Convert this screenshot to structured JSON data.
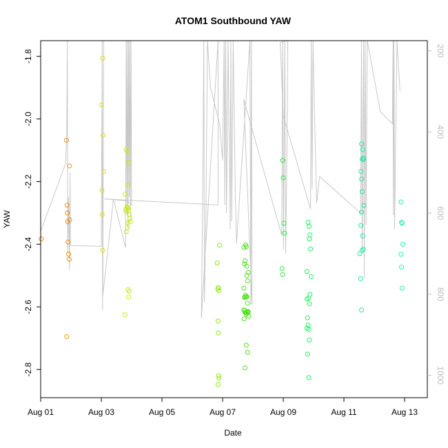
{
  "chart_data": {
    "type": "scatter",
    "title": "ATOM1 Southbound YAW",
    "xlabel": "Date",
    "ylabel": "YAW",
    "xlim_days": [
      0.0,
      12.75
    ],
    "ylim": [
      -2.89,
      -1.75
    ],
    "x_ticks": [
      {
        "day": 0,
        "label": "Aug 01"
      },
      {
        "day": 2,
        "label": "Aug 03"
      },
      {
        "day": 4,
        "label": "Aug 05"
      },
      {
        "day": 6,
        "label": "Aug 07"
      },
      {
        "day": 8,
        "label": "Aug 09"
      },
      {
        "day": 10,
        "label": "Aug 11"
      },
      {
        "day": 12,
        "label": "Aug 13"
      }
    ],
    "y_ticks": [
      -2.8,
      -2.6,
      -2.4,
      -2.2,
      -2.0,
      -1.8
    ],
    "y_tick_labels": [
      "-2.8",
      "-2.6",
      "-2.4",
      "-2.2",
      "-2.0",
      "-1.8"
    ],
    "right_axis": {
      "lim": [
        1055,
        175
      ],
      "ticks": [
        200,
        400,
        600,
        800,
        1000
      ],
      "tick_labels": [
        "200",
        "400",
        "600",
        "800",
        "1000"
      ],
      "color": "#bdbdbd"
    },
    "depth_line_color": "#c8c8c8",
    "depth_polyline": [
      [
        0.0,
        645
      ],
      [
        0.82,
        478
      ],
      [
        0.86,
        410
      ],
      [
        0.88,
        175
      ],
      [
        0.89,
        700
      ],
      [
        0.92,
        560
      ],
      [
        0.95,
        740
      ],
      [
        0.97,
        500
      ],
      [
        0.98,
        680
      ],
      [
        2.0,
        682
      ],
      [
        2.03,
        175
      ],
      [
        2.04,
        840
      ],
      [
        2.08,
        175
      ],
      [
        2.05,
        803
      ],
      [
        2.4,
        565
      ],
      [
        2.8,
        685
      ],
      [
        2.82,
        175
      ],
      [
        2.84,
        600
      ],
      [
        2.86,
        175
      ],
      [
        2.88,
        640
      ],
      [
        2.9,
        175
      ],
      [
        2.92,
        560
      ],
      [
        2.94,
        175
      ],
      [
        2.96,
        620
      ],
      [
        2.98,
        175
      ],
      [
        3.0,
        580
      ],
      [
        2.85,
        570
      ],
      [
        2.1,
        565
      ],
      [
        5.85,
        580
      ],
      [
        5.85,
        175
      ],
      [
        5.3,
        860
      ],
      [
        5.35,
        500
      ],
      [
        5.38,
        175
      ],
      [
        5.4,
        820
      ],
      [
        5.45,
        600
      ],
      [
        5.5,
        175
      ],
      [
        5.6,
        290
      ],
      [
        5.9,
        380
      ],
      [
        6.0,
        470
      ],
      [
        6.05,
        175
      ],
      [
        6.07,
        580
      ],
      [
        6.1,
        175
      ],
      [
        6.13,
        600
      ],
      [
        6.18,
        175
      ],
      [
        6.25,
        640
      ],
      [
        6.27,
        175
      ],
      [
        6.3,
        620
      ],
      [
        6.35,
        175
      ],
      [
        6.42,
        560
      ],
      [
        6.46,
        675
      ],
      [
        6.9,
        175
      ],
      [
        6.93,
        825
      ],
      [
        6.95,
        175
      ],
      [
        6.97,
        825
      ],
      [
        6.7,
        320
      ],
      [
        7.95,
        655
      ],
      [
        7.98,
        175
      ],
      [
        8.01,
        690
      ],
      [
        8.05,
        175
      ],
      [
        8.08,
        700
      ],
      [
        8.12,
        450
      ],
      [
        8.15,
        175
      ],
      [
        7.9,
        180
      ],
      [
        8.0,
        360
      ],
      [
        8.9,
        590
      ],
      [
        8.92,
        175
      ],
      [
        8.95,
        540
      ],
      [
        8.98,
        175
      ],
      [
        9.05,
        420
      ],
      [
        9.1,
        575
      ],
      [
        9.2,
        510
      ],
      [
        10.55,
        600
      ],
      [
        10.58,
        175
      ],
      [
        10.6,
        700
      ],
      [
        10.62,
        480
      ],
      [
        10.65,
        175
      ],
      [
        10.67,
        760
      ],
      [
        10.7,
        175
      ],
      [
        10.73,
        630
      ],
      [
        10.77,
        175
      ],
      [
        11.2,
        350
      ],
      [
        11.6,
        380
      ],
      [
        11.62,
        175
      ],
      [
        11.63,
        605
      ],
      [
        11.65,
        175
      ],
      [
        11.67,
        640
      ],
      [
        11.75,
        175
      ],
      [
        11.85,
        300
      ]
    ],
    "series": [
      {
        "color": "#ee8f12",
        "points": [
          [
            0.02,
            -2.383
          ],
          [
            0.85,
            -2.068
          ],
          [
            0.87,
            -2.275
          ],
          [
            0.88,
            -2.3
          ],
          [
            0.89,
            -2.328
          ],
          [
            0.9,
            -2.393
          ],
          [
            0.92,
            -2.432
          ],
          [
            0.94,
            -2.448
          ],
          [
            0.95,
            -2.15
          ],
          [
            0.96,
            -2.322
          ],
          [
            0.86,
            -2.695
          ]
        ]
      },
      {
        "color": "#dede20",
        "points": [
          [
            2.0,
            -1.955
          ],
          [
            2.04,
            -1.806
          ],
          [
            2.06,
            -2.052
          ],
          [
            2.08,
            -2.168
          ],
          [
            2.02,
            -2.228
          ],
          [
            2.03,
            -2.305
          ],
          [
            2.04,
            -2.42
          ]
        ]
      },
      {
        "color": "#c8e81e",
        "points": [
          [
            2.82,
            -2.098
          ],
          [
            2.86,
            -2.105
          ],
          [
            2.88,
            -2.21
          ],
          [
            2.9,
            -2.138
          ],
          [
            2.78,
            -2.24
          ],
          [
            2.8,
            -2.29
          ],
          [
            2.82,
            -2.295
          ],
          [
            2.84,
            -2.28
          ],
          [
            2.86,
            -2.283
          ],
          [
            2.88,
            -2.286
          ],
          [
            2.9,
            -2.293
          ],
          [
            2.92,
            -2.305
          ],
          [
            2.94,
            -2.318
          ],
          [
            2.96,
            -2.328
          ],
          [
            2.82,
            -2.36
          ],
          [
            2.86,
            -2.348
          ],
          [
            2.88,
            -2.332
          ],
          [
            2.78,
            -2.625
          ],
          [
            2.88,
            -2.545
          ],
          [
            2.92,
            -2.55
          ],
          [
            2.9,
            -2.568
          ]
        ]
      },
      {
        "color": "#8ee612",
        "points": [
          [
            5.82,
            -2.46
          ],
          [
            5.84,
            -2.543
          ],
          [
            5.86,
            -2.538
          ],
          [
            5.88,
            -2.548
          ],
          [
            5.85,
            -2.645
          ],
          [
            5.86,
            -2.683
          ],
          [
            5.87,
            -2.82
          ],
          [
            5.88,
            -2.828
          ],
          [
            5.85,
            -2.848
          ],
          [
            5.9,
            -2.403
          ]
        ]
      },
      {
        "color": "#4de01a",
        "points": [
          [
            6.7,
            -2.41
          ],
          [
            6.72,
            -2.463
          ],
          [
            6.74,
            -2.453
          ],
          [
            6.76,
            -2.402
          ],
          [
            6.78,
            -2.408
          ],
          [
            6.8,
            -2.47
          ],
          [
            6.7,
            -2.54
          ],
          [
            6.72,
            -2.57
          ],
          [
            6.74,
            -2.568
          ],
          [
            6.76,
            -2.563
          ],
          [
            6.78,
            -2.568
          ],
          [
            6.8,
            -2.568
          ],
          [
            6.82,
            -2.588
          ],
          [
            6.84,
            -2.618
          ],
          [
            6.86,
            -2.63
          ],
          [
            6.7,
            -2.61
          ],
          [
            6.72,
            -2.612
          ],
          [
            6.74,
            -2.618
          ],
          [
            6.76,
            -2.618
          ],
          [
            6.78,
            -2.623
          ],
          [
            6.8,
            -2.617
          ],
          [
            6.82,
            -2.615
          ],
          [
            6.84,
            -2.615
          ],
          [
            6.71,
            -2.638
          ],
          [
            6.78,
            -2.722
          ],
          [
            6.82,
            -2.745
          ],
          [
            6.74,
            -2.795
          ],
          [
            6.8,
            -2.5
          ],
          [
            6.82,
            -2.517
          ],
          [
            6.84,
            -2.49
          ]
        ]
      },
      {
        "color": "#2fe84a",
        "points": [
          [
            7.98,
            -2.132
          ],
          [
            8.0,
            -2.188
          ],
          [
            8.02,
            -2.333
          ],
          [
            8.04,
            -2.365
          ],
          [
            7.96,
            -2.478
          ],
          [
            7.98,
            -2.497
          ]
        ]
      },
      {
        "color": "#1ef05e",
        "points": [
          [
            8.82,
            -2.33
          ],
          [
            8.85,
            -2.343
          ],
          [
            8.88,
            -2.37
          ],
          [
            8.86,
            -2.383
          ],
          [
            8.9,
            -2.415
          ],
          [
            8.78,
            -2.487
          ],
          [
            8.92,
            -2.503
          ],
          [
            8.78,
            -2.575
          ],
          [
            8.84,
            -2.572
          ],
          [
            8.86,
            -2.59
          ],
          [
            8.88,
            -2.56
          ],
          [
            8.8,
            -2.635
          ],
          [
            8.82,
            -2.658
          ],
          [
            8.84,
            -2.672
          ],
          [
            8.78,
            -2.668
          ],
          [
            8.86,
            -2.706
          ],
          [
            8.8,
            -2.751
          ],
          [
            8.84,
            -2.826
          ]
        ]
      },
      {
        "color": "#1ee8a0",
        "points": [
          [
            10.58,
            -2.08
          ],
          [
            10.62,
            -2.098
          ],
          [
            10.65,
            -2.125
          ],
          [
            10.6,
            -2.128
          ],
          [
            10.64,
            -2.13
          ],
          [
            10.56,
            -2.168
          ],
          [
            10.58,
            -2.192
          ],
          [
            10.6,
            -2.232
          ],
          [
            10.66,
            -2.276
          ],
          [
            10.58,
            -2.298
          ],
          [
            10.56,
            -2.34
          ],
          [
            10.62,
            -2.373
          ],
          [
            10.64,
            -2.415
          ],
          [
            10.6,
            -2.42
          ],
          [
            10.52,
            -2.43
          ],
          [
            10.55,
            -2.51
          ],
          [
            10.58,
            -2.61
          ]
        ]
      },
      {
        "color": "#22eebc",
        "points": [
          [
            11.88,
            -2.265
          ],
          [
            11.9,
            -2.33
          ],
          [
            11.92,
            -2.333
          ],
          [
            11.94,
            -2.4
          ],
          [
            11.88,
            -2.432
          ],
          [
            11.9,
            -2.473
          ],
          [
            11.92,
            -2.54
          ]
        ]
      }
    ]
  }
}
